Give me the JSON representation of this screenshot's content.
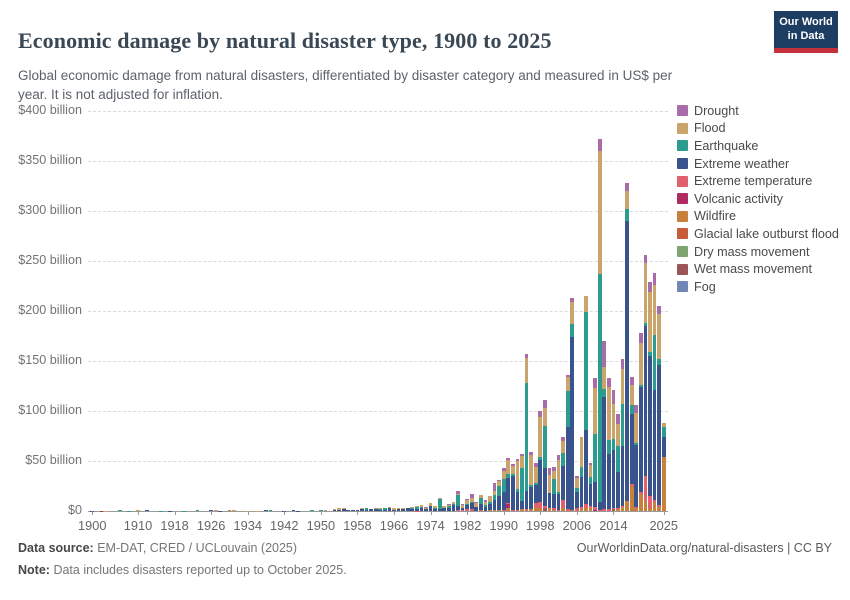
{
  "header": {
    "title": "Economic damage by natural disaster type, 1900 to 2025",
    "subtitle": "Global economic damage from natural disasters, differentiated by disaster category and measured in US$ per year. It is not adjusted for inflation.",
    "logo": {
      "line1": "Our World",
      "line2": "in Data",
      "bg_color": "#1d3d63",
      "bar_color": "#c5303e"
    }
  },
  "footer": {
    "source_label": "Data source:",
    "source_value": "EM-DAT, CRED / UCLouvain (2025)",
    "note_label": "Note:",
    "note_value": "Data includes disasters reported up to October 2025.",
    "link": "OurWorldinData.org/natural-disasters | CC BY"
  },
  "chart_data": {
    "type": "bar",
    "stacked": true,
    "title": "Economic damage by natural disaster type, 1900 to 2025",
    "unit": "US$ billion per year",
    "xlabel": "",
    "ylabel": "",
    "grid": true,
    "legend_position": "right",
    "x_range": [
      1900,
      2025
    ],
    "ylim": [
      0,
      400
    ],
    "yticks": [
      {
        "v": 0,
        "label": "$0"
      },
      {
        "v": 50,
        "label": "$50 billion"
      },
      {
        "v": 100,
        "label": "$100 billion"
      },
      {
        "v": 150,
        "label": "$150 billion"
      },
      {
        "v": 200,
        "label": "$200 billion"
      },
      {
        "v": 250,
        "label": "$250 billion"
      },
      {
        "v": 300,
        "label": "$300 billion"
      },
      {
        "v": 350,
        "label": "$350 billion"
      },
      {
        "v": 400,
        "label": "$400 billion"
      }
    ],
    "xticks": [
      1900,
      1910,
      1918,
      1926,
      1934,
      1942,
      1950,
      1958,
      1966,
      1974,
      1982,
      1990,
      1998,
      2006,
      2014,
      2025
    ],
    "categories": [
      {
        "name": "Drought",
        "color": "#A96CA8"
      },
      {
        "name": "Flood",
        "color": "#C9A46B"
      },
      {
        "name": "Earthquake",
        "color": "#2D9C90"
      },
      {
        "name": "Extreme weather",
        "color": "#39538C"
      },
      {
        "name": "Extreme temperature",
        "color": "#E0606E"
      },
      {
        "name": "Volcanic activity",
        "color": "#AF2A62"
      },
      {
        "name": "Wildfire",
        "color": "#C8813C"
      },
      {
        "name": "Glacial lake outburst flood",
        "color": "#C75C3B"
      },
      {
        "name": "Dry mass movement",
        "color": "#7EA46F"
      },
      {
        "name": "Wet mass movement",
        "color": "#9D5658"
      },
      {
        "name": "Fog",
        "color": "#7185B6"
      }
    ],
    "stack_order_bottom_to_top": [
      "Fog",
      "Wet mass movement",
      "Dry mass movement",
      "Glacial lake outburst flood",
      "Wildfire",
      "Volcanic activity",
      "Extreme temperature",
      "Extreme weather",
      "Earthquake",
      "Flood",
      "Drought"
    ],
    "values_unit": "US$ billion",
    "values": {
      "1900": {
        "Extreme weather": 0.4
      },
      "1902": {
        "Volcanic activity": 0.3
      },
      "1903": {
        "Flood": 0.4
      },
      "1906": {
        "Earthquake": 1.1
      },
      "1908": {
        "Earthquake": 0.5
      },
      "1910": {
        "Flood": 0.6
      },
      "1912": {
        "Extreme weather": 0.7
      },
      "1915": {
        "Earthquake": 0.3
      },
      "1917": {
        "Extreme weather": 0.3
      },
      "1920": {
        "Earthquake": 0.5
      },
      "1923": {
        "Earthquake": 1.2
      },
      "1926": {
        "Extreme weather": 0.8
      },
      "1927": {
        "Flood": 0.7
      },
      "1928": {
        "Extreme weather": 0.4
      },
      "1930": {
        "Wildfire": 1.2
      },
      "1931": {
        "Flood": 1.1
      },
      "1934": {
        "Flood": 0.5
      },
      "1936": {
        "Flood": 0.5
      },
      "1938": {
        "Extreme weather": 0.7,
        "Flood": 0.3
      },
      "1939": {
        "Earthquake": 1.0
      },
      "1942": {
        "Extreme weather": 0.5
      },
      "1944": {
        "Extreme weather": 0.6
      },
      "1945": {
        "Extreme weather": 0.5
      },
      "1948": {
        "Earthquake": 0.7
      },
      "1950": {
        "Earthquake": 1.0,
        "Flood": 0.5
      },
      "1951": {
        "Flood": 0.8
      },
      "1953": {
        "Flood": 1.5,
        "Extreme weather": 0.9
      },
      "1954": {
        "Flood": 1.4,
        "Extreme weather": 1.2
      },
      "1955": {
        "Extreme weather": 1.7,
        "Flood": 0.9
      },
      "1956": {
        "Extreme weather": 1.0
      },
      "1957": {
        "Extreme weather": 0.8
      },
      "1958": {
        "Extreme weather": 0.7
      },
      "1959": {
        "Extreme weather": 2.1,
        "Flood": 0.6
      },
      "1960": {
        "Earthquake": 1.9,
        "Extreme weather": 0.9
      },
      "1961": {
        "Extreme weather": 1.6,
        "Flood": 0.6
      },
      "1962": {
        "Extreme weather": 1.9,
        "Flood": 0.8
      },
      "1963": {
        "Extreme weather": 1.5,
        "Earthquake": 0.6,
        "Flood": 0.8
      },
      "1964": {
        "Earthquake": 1.9,
        "Extreme weather": 1.3
      },
      "1965": {
        "Extreme weather": 2.9,
        "Flood": 0.7
      },
      "1966": {
        "Flood": 2.3,
        "Extreme weather": 1.1
      },
      "1967": {
        "Extreme weather": 1.6,
        "Flood": 1.1
      },
      "1968": {
        "Extreme weather": 1.9,
        "Earthquake": 0.6,
        "Flood": 0.9
      },
      "1969": {
        "Extreme weather": 2.6,
        "Flood": 0.9
      },
      "1970": {
        "Extreme weather": 2.3,
        "Earthquake": 0.9,
        "Flood": 0.9
      },
      "1971": {
        "Earthquake": 1.6,
        "Extreme weather": 1.6,
        "Flood": 1.1,
        "Extreme temperature": 0.5
      },
      "1972": {
        "Extreme weather": 3.1,
        "Flood": 2.1,
        "Earthquake": 1.1
      },
      "1973": {
        "Flood": 1.9,
        "Extreme weather": 1.6,
        "Drought": 0.6
      },
      "1974": {
        "Extreme weather": 4.6,
        "Flood": 2.1,
        "Earthquake": 0.9
      },
      "1975": {
        "Extreme weather": 2.1,
        "Flood": 1.6,
        "Earthquake": 1.1
      },
      "1976": {
        "Earthquake": 10.2,
        "Extreme weather": 2.1,
        "Flood": 1.1
      },
      "1977": {
        "Extreme weather": 2.6,
        "Flood": 1.6,
        "Earthquake": 0.9
      },
      "1978": {
        "Extreme weather": 3.1,
        "Flood": 1.6,
        "Earthquake": 1.6,
        "Drought": 1.1
      },
      "1979": {
        "Extreme weather": 5.6,
        "Flood": 2.1,
        "Earthquake": 1.1
      },
      "1980": {
        "Earthquake": 10.6,
        "Extreme weather": 4.1,
        "Flood": 1.6,
        "Drought": 2.6,
        "Extreme temperature": 0.9
      },
      "1981": {
        "Flood": 3.1,
        "Extreme weather": 2.6,
        "Drought": 1.1,
        "Extreme temperature": 0.6
      },
      "1982": {
        "Extreme weather": 4.6,
        "Flood": 4.1,
        "Extreme temperature": 1.6,
        "Earthquake": 0.6,
        "Drought": 1.1
      },
      "1983": {
        "Extreme weather": 6.1,
        "Flood": 4.1,
        "Drought": 4.1,
        "Extreme temperature": 1.6,
        "Earthquake": 1.1
      },
      "1984": {
        "Extreme weather": 4.1,
        "Flood": 3.6,
        "Drought": 1.6
      },
      "1985": {
        "Earthquake": 5.1,
        "Extreme weather": 6.6,
        "Flood": 3.6,
        "Extreme temperature": 0.9
      },
      "1986": {
        "Extreme weather": 4.1,
        "Flood": 3.6,
        "Earthquake": 1.6,
        "Drought": 1.6
      },
      "1987": {
        "Flood": 5.6,
        "Extreme weather": 5.1,
        "Earthquake": 2.6,
        "Extreme temperature": 0.9,
        "Wildfire": 0.6
      },
      "1988": {
        "Drought": 8.1,
        "Extreme weather": 10.1,
        "Earthquake": 5.1,
        "Flood": 4.1,
        "Wildfire": 1.1
      },
      "1989": {
        "Extreme weather": 14.1,
        "Earthquake": 10.1,
        "Flood": 4.6,
        "Drought": 1.6,
        "Wildfire": 1.1
      },
      "1990": {
        "Extreme weather": 18.1,
        "Earthquake": 13.1,
        "Flood": 8.1,
        "Drought": 2.6,
        "Extreme temperature": 1.1
      },
      "1991": {
        "Extreme weather": 25.1,
        "Flood": 14.1,
        "Earthquake": 4.1,
        "Volcanic activity": 3.6,
        "Wildfire": 3.1,
        "Drought": 2.1,
        "Extreme temperature": 1.1
      },
      "1992": {
        "Extreme weather": 34.1,
        "Flood": 8.1,
        "Earthquake": 2.6,
        "Drought": 2.1,
        "Extreme temperature": 0.6
      },
      "1993": {
        "Flood": 28.1,
        "Extreme weather": 18.1,
        "Earthquake": 3.1,
        "Drought": 2.1,
        "Extreme temperature": 0.9
      },
      "1994": {
        "Earthquake": 33.1,
        "Flood": 12.1,
        "Extreme weather": 8.1,
        "Drought": 2.1,
        "Wildfire": 1.6
      },
      "1995": {
        "Earthquake": 108,
        "Flood": 25.1,
        "Extreme weather": 18.1,
        "Drought": 4.1,
        "Extreme temperature": 1.6
      },
      "1996": {
        "Flood": 30.1,
        "Extreme weather": 22.1,
        "Drought": 3.1,
        "Earthquake": 2.1,
        "Wildfire": 1.6
      },
      "1997": {
        "Extreme weather": 18.1,
        "Flood": 16.1,
        "Extreme temperature": 4.1,
        "Wildfire": 4.1,
        "Drought": 3.6,
        "Earthquake": 1.6
      },
      "1998": {
        "Extreme weather": 42.1,
        "Flood": 40.1,
        "Extreme temperature": 6.6,
        "Drought": 6.1,
        "Earthquake": 2.6,
        "Wildfire": 2.6
      },
      "1999": {
        "Earthquake": 42.1,
        "Extreme weather": 38.1,
        "Flood": 18.1,
        "Drought": 7.6,
        "Wet mass movement": 2.6,
        "Extreme temperature": 2.1
      },
      "2000": {
        "Flood": 18.1,
        "Extreme weather": 15.1,
        "Drought": 7.1,
        "Extreme temperature": 1.6,
        "Wildfire": 1.6
      },
      "2001": {
        "Earthquake": 15.1,
        "Extreme weather": 14.1,
        "Flood": 8.1,
        "Drought": 4.1,
        "Extreme temperature": 1.6,
        "Wildfire": 1.1
      },
      "2002": {
        "Flood": 32.1,
        "Extreme weather": 16.1,
        "Drought": 5.6,
        "Earthquake": 1.6,
        "Extreme temperature": 1.1
      },
      "2003": {
        "Extreme weather": 34.1,
        "Earthquake": 13.1,
        "Flood": 12.1,
        "Extreme temperature": 8.1,
        "Drought": 3.6,
        "Wildfire": 3.1
      },
      "2004": {
        "Extreme weather": 82.1,
        "Earthquake": 36.1,
        "Flood": 14.1,
        "Drought": 2.1,
        "Extreme temperature": 2.1
      },
      "2005": {
        "Extreme weather": 173,
        "Flood": 22.1,
        "Earthquake": 13.1,
        "Drought": 3.6,
        "Wildfire": 1.1
      },
      "2006": {
        "Extreme weather": 16.1,
        "Flood": 10.1,
        "Earthquake": 4.1,
        "Extreme temperature": 3.1,
        "Drought": 2.1
      },
      "2007": {
        "Flood": 30.1,
        "Extreme weather": 30.1,
        "Earthquake": 10.1,
        "Wildfire": 2.1,
        "Extreme temperature": 1.6
      },
      "2008": {
        "Earthquake": 118,
        "Extreme weather": 74.1,
        "Flood": 16.1,
        "Extreme temperature": 4.1,
        "Wildfire": 3.1
      },
      "2009": {
        "Extreme weather": 22.1,
        "Flood": 12.1,
        "Earthquake": 7.1,
        "Wildfire": 3.1,
        "Extreme temperature": 1.6,
        "Drought": 1.6
      },
      "2010": {
        "Earthquake": 48.1,
        "Flood": 46.1,
        "Extreme weather": 25.1,
        "Drought": 10.1,
        "Extreme temperature": 2.6,
        "Volcanic activity": 1.1
      },
      "2011": {
        "Earthquake": 228,
        "Flood": 123,
        "Drought": 12.1,
        "Extreme weather": 7.6,
        "Extreme temperature": 1.1
      },
      "2012": {
        "Extreme weather": 112,
        "Drought": 26.1,
        "Flood": 22.1,
        "Earthquake": 8.1,
        "Extreme temperature": 2.1
      },
      "2013": {
        "Extreme weather": 55.1,
        "Flood": 53.1,
        "Earthquake": 14.1,
        "Drought": 9.1,
        "Extreme temperature": 2.1
      },
      "2014": {
        "Extreme weather": 58.1,
        "Flood": 35.1,
        "Drought": 13.1,
        "Earthquake": 11.1,
        "Wet mass movement": 1.6,
        "Extreme temperature": 1.6
      },
      "2015": {
        "Extreme weather": 36.1,
        "Earthquake": 26.1,
        "Flood": 22.1,
        "Drought": 9.1,
        "Extreme temperature": 1.6,
        "Wildfire": 1.6
      },
      "2016": {
        "Extreme weather": 60.1,
        "Earthquake": 42.1,
        "Flood": 35.1,
        "Drought": 9.1,
        "Wildfire": 4.1,
        "Extreme temperature": 1.1
      },
      "2017": {
        "Extreme weather": 280,
        "Flood": 18.1,
        "Earthquake": 12.1,
        "Wildfire": 10.1,
        "Drought": 8.1
      },
      "2018": {
        "Extreme weather": 70.1,
        "Wildfire": 25.1,
        "Flood": 20.1,
        "Earthquake": 9.1,
        "Drought": 8.1,
        "Extreme temperature": 1.6
      },
      "2019": {
        "Extreme weather": 62.1,
        "Flood": 30.1,
        "Drought": 8.1,
        "Wildfire": 2.6,
        "Earthquake": 2.1,
        "Extreme temperature": 1.1
      },
      "2020": {
        "Extreme weather": 105,
        "Flood": 42.1,
        "Wildfire": 17.1,
        "Drought": 10.1,
        "Extreme temperature": 2.1,
        "Earthquake": 2.1
      },
      "2021": {
        "Extreme weather": 150,
        "Flood": 60.1,
        "Extreme temperature": 25.1,
        "Wildfire": 10.1,
        "Drought": 8.1,
        "Earthquake": 3.1
      },
      "2022": {
        "Extreme weather": 140,
        "Flood": 60.1,
        "Extreme temperature": 12.1,
        "Drought": 10.1,
        "Earthquake": 4.1,
        "Wildfire": 3.1
      },
      "2023": {
        "Extreme weather": 110,
        "Earthquake": 55.1,
        "Flood": 50.1,
        "Drought": 12.1,
        "Wildfire": 9.1,
        "Extreme temperature": 2.1
      },
      "2024": {
        "Extreme weather": 140,
        "Flood": 45.1,
        "Drought": 8.1,
        "Earthquake": 6.1,
        "Wildfire": 4.1,
        "Extreme temperature": 2.1
      },
      "2025": {
        "Wildfire": 54.1,
        "Extreme weather": 20.1,
        "Earthquake": 10.1,
        "Flood": 4.1
      }
    }
  }
}
